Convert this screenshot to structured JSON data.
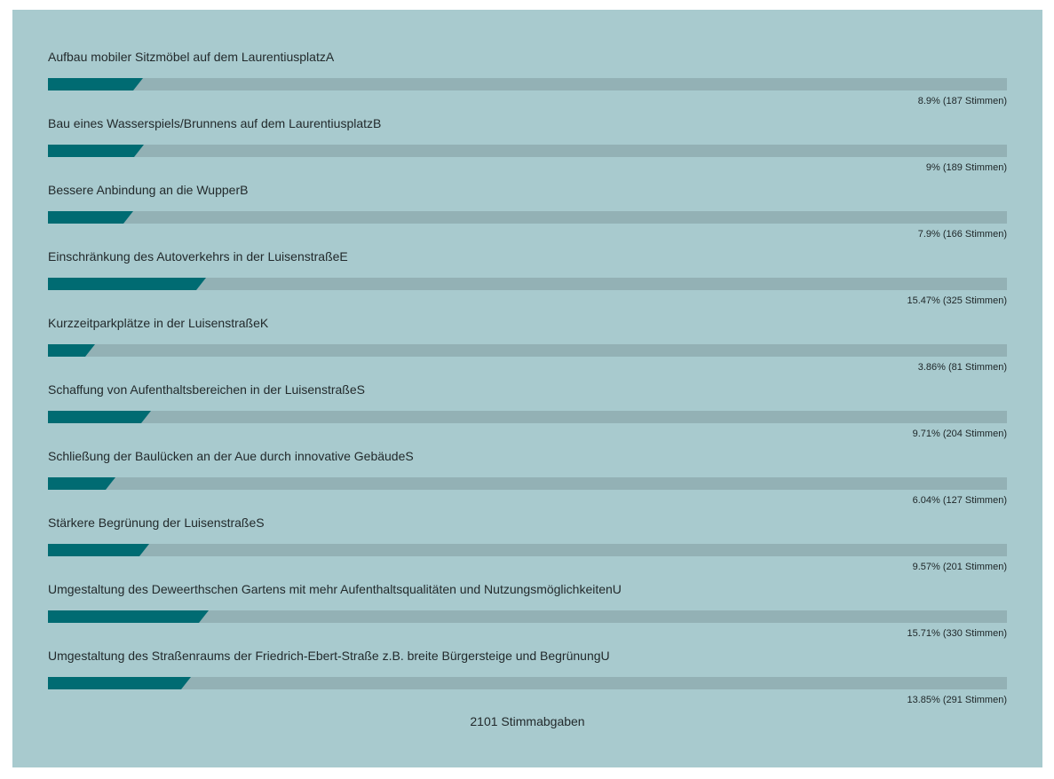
{
  "chart_data": {
    "type": "bar",
    "orientation": "horizontal",
    "xlim": [
      0,
      100
    ],
    "colors": {
      "fill": "#006b72",
      "track": "#93b1b5",
      "background": "#a8cace"
    },
    "items": [
      {
        "label": "Aufbau mobiler Sitzmöbel auf dem LaurentiusplatzA",
        "percent": 8.9,
        "votes": 187,
        "result_text": "8.9% (187 Stimmen)"
      },
      {
        "label": "Bau eines Wasserspiels/Brunnens auf dem LaurentiusplatzB",
        "percent": 9,
        "votes": 189,
        "result_text": "9% (189 Stimmen)"
      },
      {
        "label": "Bessere Anbindung an die WupperB",
        "percent": 7.9,
        "votes": 166,
        "result_text": "7.9% (166 Stimmen)"
      },
      {
        "label": "Einschränkung des Autoverkehrs in der LuisenstraßeE",
        "percent": 15.47,
        "votes": 325,
        "result_text": "15.47% (325 Stimmen)"
      },
      {
        "label": "Kurzzeitparkplätze in der LuisenstraßeK",
        "percent": 3.86,
        "votes": 81,
        "result_text": "3.86% (81 Stimmen)"
      },
      {
        "label": "Schaffung von Aufenthaltsbereichen in der LuisenstraßeS",
        "percent": 9.71,
        "votes": 204,
        "result_text": "9.71% (204 Stimmen)"
      },
      {
        "label": "Schließung der Baulücken an der Aue durch innovative GebäudeS",
        "percent": 6.04,
        "votes": 127,
        "result_text": "6.04% (127 Stimmen)"
      },
      {
        "label": "Stärkere Begrünung der LuisenstraßeS",
        "percent": 9.57,
        "votes": 201,
        "result_text": "9.57% (201 Stimmen)"
      },
      {
        "label": "Umgestaltung des Deweerthschen Gartens mit mehr Aufenthaltsqualitäten und NutzungsmöglichkeitenU",
        "percent": 15.71,
        "votes": 330,
        "result_text": "15.71% (330 Stimmen)"
      },
      {
        "label": "Umgestaltung des Straßenraums der Friedrich-Ebert-Straße z.B. breite Bürgersteige und BegrünungU",
        "percent": 13.85,
        "votes": 291,
        "result_text": "13.85% (291 Stimmen)"
      }
    ],
    "total_text": "2101 Stimmabgaben"
  }
}
